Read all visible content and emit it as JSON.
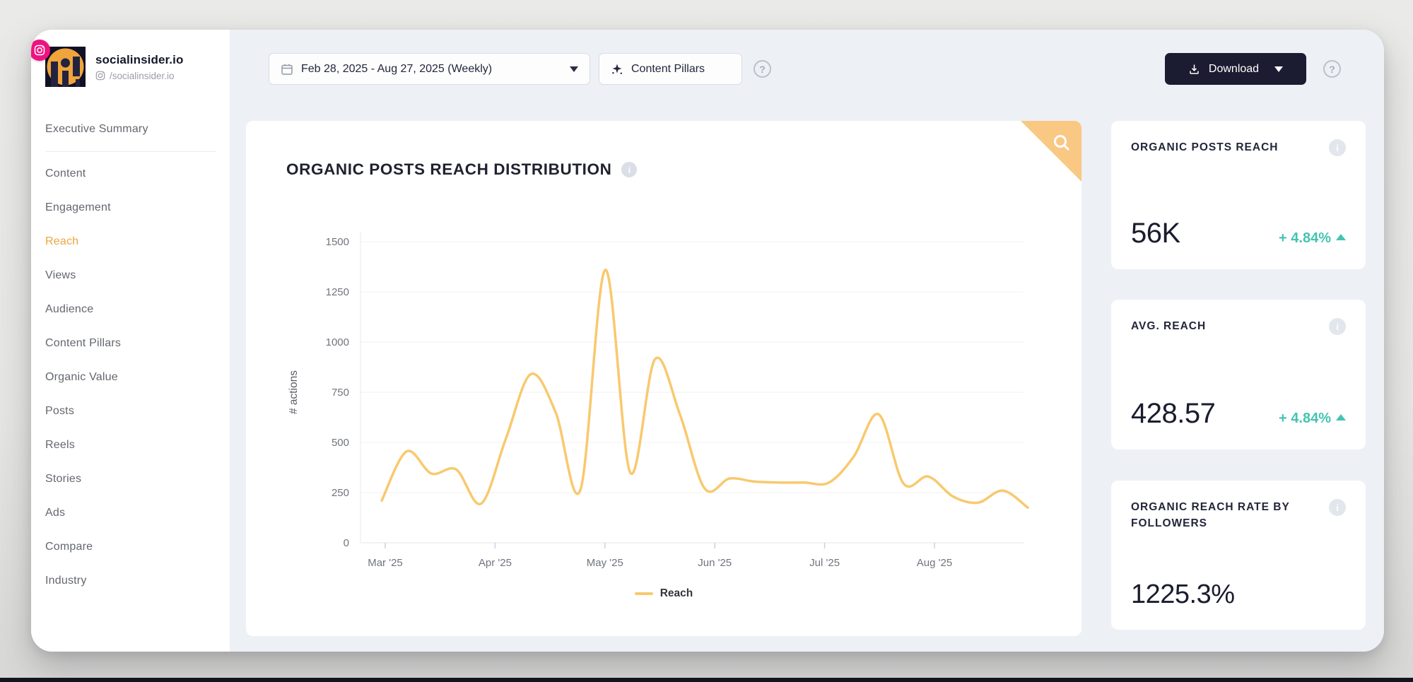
{
  "brand": {
    "name": "socialinsider.io",
    "handle": "/socialinsider.io"
  },
  "sidebar": {
    "items": [
      {
        "label": "Executive Summary",
        "active": false
      },
      {
        "label": "Content",
        "active": false
      },
      {
        "label": "Engagement",
        "active": false
      },
      {
        "label": "Reach",
        "active": true
      },
      {
        "label": "Views",
        "active": false
      },
      {
        "label": "Audience",
        "active": false
      },
      {
        "label": "Content Pillars",
        "active": false
      },
      {
        "label": "Organic Value",
        "active": false
      },
      {
        "label": "Posts",
        "active": false
      },
      {
        "label": "Reels",
        "active": false
      },
      {
        "label": "Stories",
        "active": false
      },
      {
        "label": "Ads",
        "active": false
      },
      {
        "label": "Compare",
        "active": false
      },
      {
        "label": "Industry",
        "active": false
      }
    ]
  },
  "topbar": {
    "date_range": "Feb 28, 2025 - Aug 27, 2025 (Weekly)",
    "content_pillars_label": "Content Pillars",
    "download_label": "Download",
    "help_symbol": "?"
  },
  "chart_data": {
    "type": "line",
    "title": "ORGANIC POSTS REACH DISTRIBUTION",
    "ylabel": "# actions",
    "x_range": "Feb 28, 2025 - Aug 27, 2025",
    "x_unit": "weekly",
    "x_ticks": [
      "Mar '25",
      "Apr '25",
      "May '25",
      "Jun '25",
      "Jul '25",
      "Aug '25"
    ],
    "y_ticks": [
      0,
      250,
      500,
      750,
      1000,
      1250,
      1500
    ],
    "ylim": [
      0,
      1500
    ],
    "grid": "horizontal",
    "legend_position": "bottom",
    "series": [
      {
        "name": "Reach",
        "color": "#F8C96E",
        "values": [
          210,
          455,
          345,
          365,
          195,
          520,
          840,
          650,
          265,
          1360,
          350,
          915,
          640,
          270,
          320,
          305,
          300,
          300,
          300,
          430,
          640,
          295,
          330,
          230,
          200,
          260,
          175
        ]
      }
    ]
  },
  "cards": [
    {
      "title": "ORGANIC POSTS REACH",
      "value": "56K",
      "change": "+ 4.84%",
      "trend": "up"
    },
    {
      "title": "AVG. REACH",
      "value": "428.57",
      "change": "+ 4.84%",
      "trend": "up"
    },
    {
      "title": "ORGANIC REACH RATE BY FOLLOWERS",
      "value": "1225.3%"
    }
  ],
  "colors": {
    "accent_orange": "#EFA63E",
    "line_yellow": "#F8C96E",
    "teal_positive": "#44C3B2",
    "dark_navy": "#1B1B32",
    "corner_flag": "#F9C883",
    "content_bg": "#EDF0F5"
  }
}
